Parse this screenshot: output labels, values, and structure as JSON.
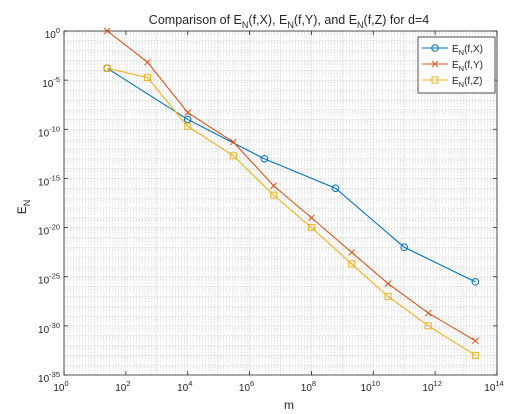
{
  "chart_data": {
    "type": "line",
    "title": "Comparison of E_N(f,X), E_N(f,Y), and E_N(f,Z) for d=4",
    "title_parts": [
      "Comparison of E",
      "N",
      "(f,X), E",
      "N",
      "(f,Y), and E",
      "N",
      "(f,Z) for d=4"
    ],
    "xlabel": "m",
    "ylabel": "E_N",
    "ylabel_parts": [
      "E",
      "N"
    ],
    "x_scale": "log",
    "y_scale": "log",
    "xlim": [
      1,
      100000000000000
    ],
    "ylim": [
      1e-35,
      1
    ],
    "grid": true,
    "minor_grid": true,
    "legend_position": "top-right",
    "x_ticks": [
      {
        "base": "10",
        "exp": "0"
      },
      {
        "base": "10",
        "exp": "2"
      },
      {
        "base": "10",
        "exp": "4"
      },
      {
        "base": "10",
        "exp": "6"
      },
      {
        "base": "10",
        "exp": "8"
      },
      {
        "base": "10",
        "exp": "10"
      },
      {
        "base": "10",
        "exp": "12"
      },
      {
        "base": "10",
        "exp": "14"
      }
    ],
    "y_ticks": [
      {
        "base": "10",
        "exp": "0"
      },
      {
        "base": "10",
        "exp": "-5"
      },
      {
        "base": "10",
        "exp": "-10"
      },
      {
        "base": "10",
        "exp": "-15"
      },
      {
        "base": "10",
        "exp": "-20"
      },
      {
        "base": "10",
        "exp": "-25"
      },
      {
        "base": "10",
        "exp": "-30"
      },
      {
        "base": "10",
        "exp": "-35"
      }
    ],
    "series": [
      {
        "name": "E_N(f,X)",
        "label_parts": [
          "E",
          "N",
          "(f,X)"
        ],
        "color": "#0072BD",
        "marker": "circle",
        "x": [
          25,
          10000,
          3000000,
          600000000,
          100000000000,
          20000000000000
        ],
        "y": [
          0.00016,
          1e-09,
          1e-13,
          1e-16,
          1e-22,
          3e-26
        ]
      },
      {
        "name": "E_N(f,Y)",
        "label_parts": [
          "E",
          "N",
          "(f,Y)"
        ],
        "color": "#D95319",
        "marker": "x",
        "x": [
          25,
          500,
          10000,
          300000,
          6000000,
          100000000,
          2000000000,
          30000000000,
          600000000000,
          20000000000000
        ],
        "y": [
          1,
          0.00067,
          5e-09,
          5e-12,
          1.8e-16,
          1e-19,
          3e-23,
          2e-26,
          2e-29,
          3e-32
        ]
      },
      {
        "name": "E_N(f,Z)",
        "label_parts": [
          "E",
          "N",
          "(f,Z)"
        ],
        "color": "#EDB120",
        "marker": "square",
        "x": [
          25,
          500,
          10000,
          300000,
          6000000,
          100000000,
          2000000000,
          30000000000,
          600000000000,
          20000000000000
        ],
        "y": [
          0.00016,
          1.8e-05,
          2e-10,
          2e-13,
          2e-17,
          1e-20,
          2e-24,
          1e-27,
          1e-30,
          1e-33
        ]
      }
    ]
  }
}
